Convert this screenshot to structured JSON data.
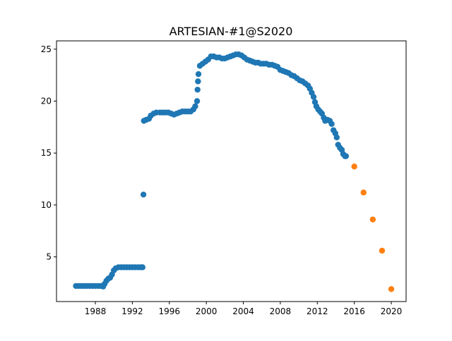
{
  "chart_data": {
    "type": "scatter",
    "title": "ARTESIAN-#1@S2020",
    "xlabel": "",
    "ylabel": "",
    "xlim": [
      1983.8,
      2021.6
    ],
    "ylim": [
      0.7,
      25.8
    ],
    "x_ticks": [
      1988,
      1992,
      1996,
      2000,
      2004,
      2008,
      2012,
      2016,
      2020
    ],
    "y_ticks": [
      5,
      10,
      15,
      20,
      25
    ],
    "x_tick_labels": [
      "1988",
      "1992",
      "1996",
      "2000",
      "2004",
      "2008",
      "2012",
      "2016",
      "2020"
    ],
    "y_tick_labels": [
      "5",
      "10",
      "15",
      "20",
      "25"
    ],
    "grid": false,
    "legend": "none",
    "series": [
      {
        "color": "#1f77b4",
        "points": [
          [
            1985.9,
            2.2
          ],
          [
            1986.2,
            2.2
          ],
          [
            1986.5,
            2.2
          ],
          [
            1986.8,
            2.2
          ],
          [
            1987.1,
            2.2
          ],
          [
            1987.4,
            2.2
          ],
          [
            1987.7,
            2.2
          ],
          [
            1988.0,
            2.2
          ],
          [
            1988.3,
            2.2
          ],
          [
            1988.6,
            2.2
          ],
          [
            1988.85,
            2.15
          ],
          [
            1989.0,
            2.4
          ],
          [
            1989.2,
            2.7
          ],
          [
            1989.4,
            2.9
          ],
          [
            1989.6,
            3.0
          ],
          [
            1989.8,
            3.3
          ],
          [
            1990.0,
            3.7
          ],
          [
            1990.2,
            3.9
          ],
          [
            1990.5,
            4.0
          ],
          [
            1990.8,
            4.0
          ],
          [
            1991.1,
            4.0
          ],
          [
            1991.4,
            4.0
          ],
          [
            1991.7,
            4.0
          ],
          [
            1992.0,
            4.0
          ],
          [
            1992.3,
            4.0
          ],
          [
            1992.6,
            4.0
          ],
          [
            1992.9,
            4.0
          ],
          [
            1993.1,
            4.0
          ],
          [
            1993.2,
            11.0
          ],
          [
            1993.25,
            18.1
          ],
          [
            1993.5,
            18.2
          ],
          [
            1993.8,
            18.3
          ],
          [
            1994.0,
            18.6
          ],
          [
            1994.3,
            18.8
          ],
          [
            1994.6,
            18.9
          ],
          [
            1995.0,
            18.9
          ],
          [
            1995.3,
            18.9
          ],
          [
            1995.6,
            18.9
          ],
          [
            1995.9,
            18.9
          ],
          [
            1996.2,
            18.8
          ],
          [
            1996.5,
            18.7
          ],
          [
            1996.8,
            18.8
          ],
          [
            1997.1,
            18.9
          ],
          [
            1997.4,
            19.0
          ],
          [
            1997.7,
            19.0
          ],
          [
            1998.0,
            19.0
          ],
          [
            1998.3,
            19.0
          ],
          [
            1998.6,
            19.2
          ],
          [
            1998.8,
            19.5
          ],
          [
            1999.0,
            20.0
          ],
          [
            1999.05,
            21.1
          ],
          [
            1999.1,
            21.9
          ],
          [
            1999.15,
            22.6
          ],
          [
            1999.3,
            23.4
          ],
          [
            1999.6,
            23.6
          ],
          [
            1999.9,
            23.8
          ],
          [
            2000.2,
            24.0
          ],
          [
            2000.5,
            24.3
          ],
          [
            2000.8,
            24.3
          ],
          [
            2001.1,
            24.2
          ],
          [
            2001.4,
            24.2
          ],
          [
            2001.7,
            24.1
          ],
          [
            2002.0,
            24.1
          ],
          [
            2002.3,
            24.2
          ],
          [
            2002.6,
            24.3
          ],
          [
            2002.9,
            24.4
          ],
          [
            2003.2,
            24.5
          ],
          [
            2003.5,
            24.5
          ],
          [
            2003.8,
            24.4
          ],
          [
            2004.1,
            24.2
          ],
          [
            2004.4,
            24.0
          ],
          [
            2004.7,
            23.9
          ],
          [
            2005.0,
            23.8
          ],
          [
            2005.3,
            23.7
          ],
          [
            2005.6,
            23.7
          ],
          [
            2005.9,
            23.6
          ],
          [
            2006.2,
            23.6
          ],
          [
            2006.5,
            23.6
          ],
          [
            2006.8,
            23.5
          ],
          [
            2007.1,
            23.5
          ],
          [
            2007.4,
            23.4
          ],
          [
            2007.7,
            23.3
          ],
          [
            2008.0,
            23.0
          ],
          [
            2008.3,
            22.9
          ],
          [
            2008.6,
            22.8
          ],
          [
            2008.9,
            22.7
          ],
          [
            2009.2,
            22.5
          ],
          [
            2009.5,
            22.4
          ],
          [
            2009.8,
            22.2
          ],
          [
            2010.1,
            22.0
          ],
          [
            2010.4,
            21.9
          ],
          [
            2010.7,
            21.7
          ],
          [
            2011.0,
            21.5
          ],
          [
            2011.2,
            21.2
          ],
          [
            2011.4,
            20.8
          ],
          [
            2011.6,
            20.4
          ],
          [
            2011.75,
            19.9
          ],
          [
            2011.9,
            19.5
          ],
          [
            2012.1,
            19.2
          ],
          [
            2012.3,
            19.0
          ],
          [
            2012.5,
            18.8
          ],
          [
            2012.7,
            18.4
          ],
          [
            2012.85,
            18.1
          ],
          [
            2013.1,
            18.2
          ],
          [
            2013.35,
            18.1
          ],
          [
            2013.55,
            17.8
          ],
          [
            2013.75,
            17.2
          ],
          [
            2013.95,
            16.9
          ],
          [
            2014.1,
            16.5
          ],
          [
            2014.25,
            15.8
          ],
          [
            2014.45,
            15.5
          ],
          [
            2014.65,
            15.3
          ],
          [
            2014.8,
            14.9
          ],
          [
            2015.0,
            14.7
          ],
          [
            2015.1,
            14.7
          ]
        ]
      },
      {
        "color": "#ff7f0e",
        "points": [
          [
            2016.0,
            13.7
          ],
          [
            2017.0,
            11.2
          ],
          [
            2018.0,
            8.6
          ],
          [
            2019.0,
            5.6
          ],
          [
            2020.0,
            1.9
          ]
        ]
      }
    ]
  }
}
